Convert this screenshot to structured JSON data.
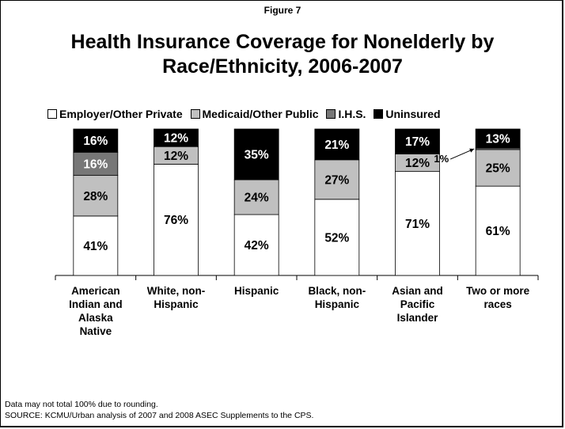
{
  "figure_label": "Figure 7",
  "title_line1": "Health Insurance Coverage for Nonelderly by",
  "title_line2": "Race/Ethnicity, 2006-2007",
  "footnote": "Data may not total 100% due to rounding.",
  "source": "SOURCE: KCMU/Urban analysis of 2007 and 2008 ASEC Supplements to the CPS.",
  "colors": {
    "private": "#ffffff",
    "public": "#c0c0c0",
    "ihs": "#777777",
    "uninsured": "#000000"
  },
  "chart_data": {
    "type": "bar",
    "stacked": true,
    "legend_position": "top",
    "categories": [
      [
        "American",
        "Indian and",
        "Alaska",
        "Native"
      ],
      [
        "White, non-",
        "Hispanic"
      ],
      [
        "Hispanic"
      ],
      [
        "Black, non-",
        "Hispanic"
      ],
      [
        "Asian and",
        "Pacific",
        "Islander"
      ],
      [
        "Two or more",
        "races"
      ]
    ],
    "series": [
      {
        "name": "Employer/Other Private",
        "values": [
          41,
          76,
          42,
          52,
          71,
          61
        ],
        "labels": [
          "41%",
          "76%",
          "42%",
          "52%",
          "71%",
          "61%"
        ]
      },
      {
        "name": "Medicaid/Other Public",
        "values": [
          28,
          12,
          24,
          27,
          12,
          25
        ],
        "labels": [
          "28%",
          "12%",
          "24%",
          "27%",
          "12%",
          "25%"
        ]
      },
      {
        "name": "I.H.S.",
        "values": [
          16,
          0,
          0,
          0,
          0,
          1
        ],
        "labels": [
          "16%",
          "",
          "",
          "",
          "",
          ""
        ]
      },
      {
        "name": "Uninsured",
        "values": [
          16,
          12,
          35,
          21,
          17,
          13
        ],
        "labels": [
          "16%",
          "12%",
          "35%",
          "21%",
          "17%",
          "13%"
        ]
      }
    ],
    "annotation": "1%",
    "ylim": [
      0,
      100
    ]
  }
}
